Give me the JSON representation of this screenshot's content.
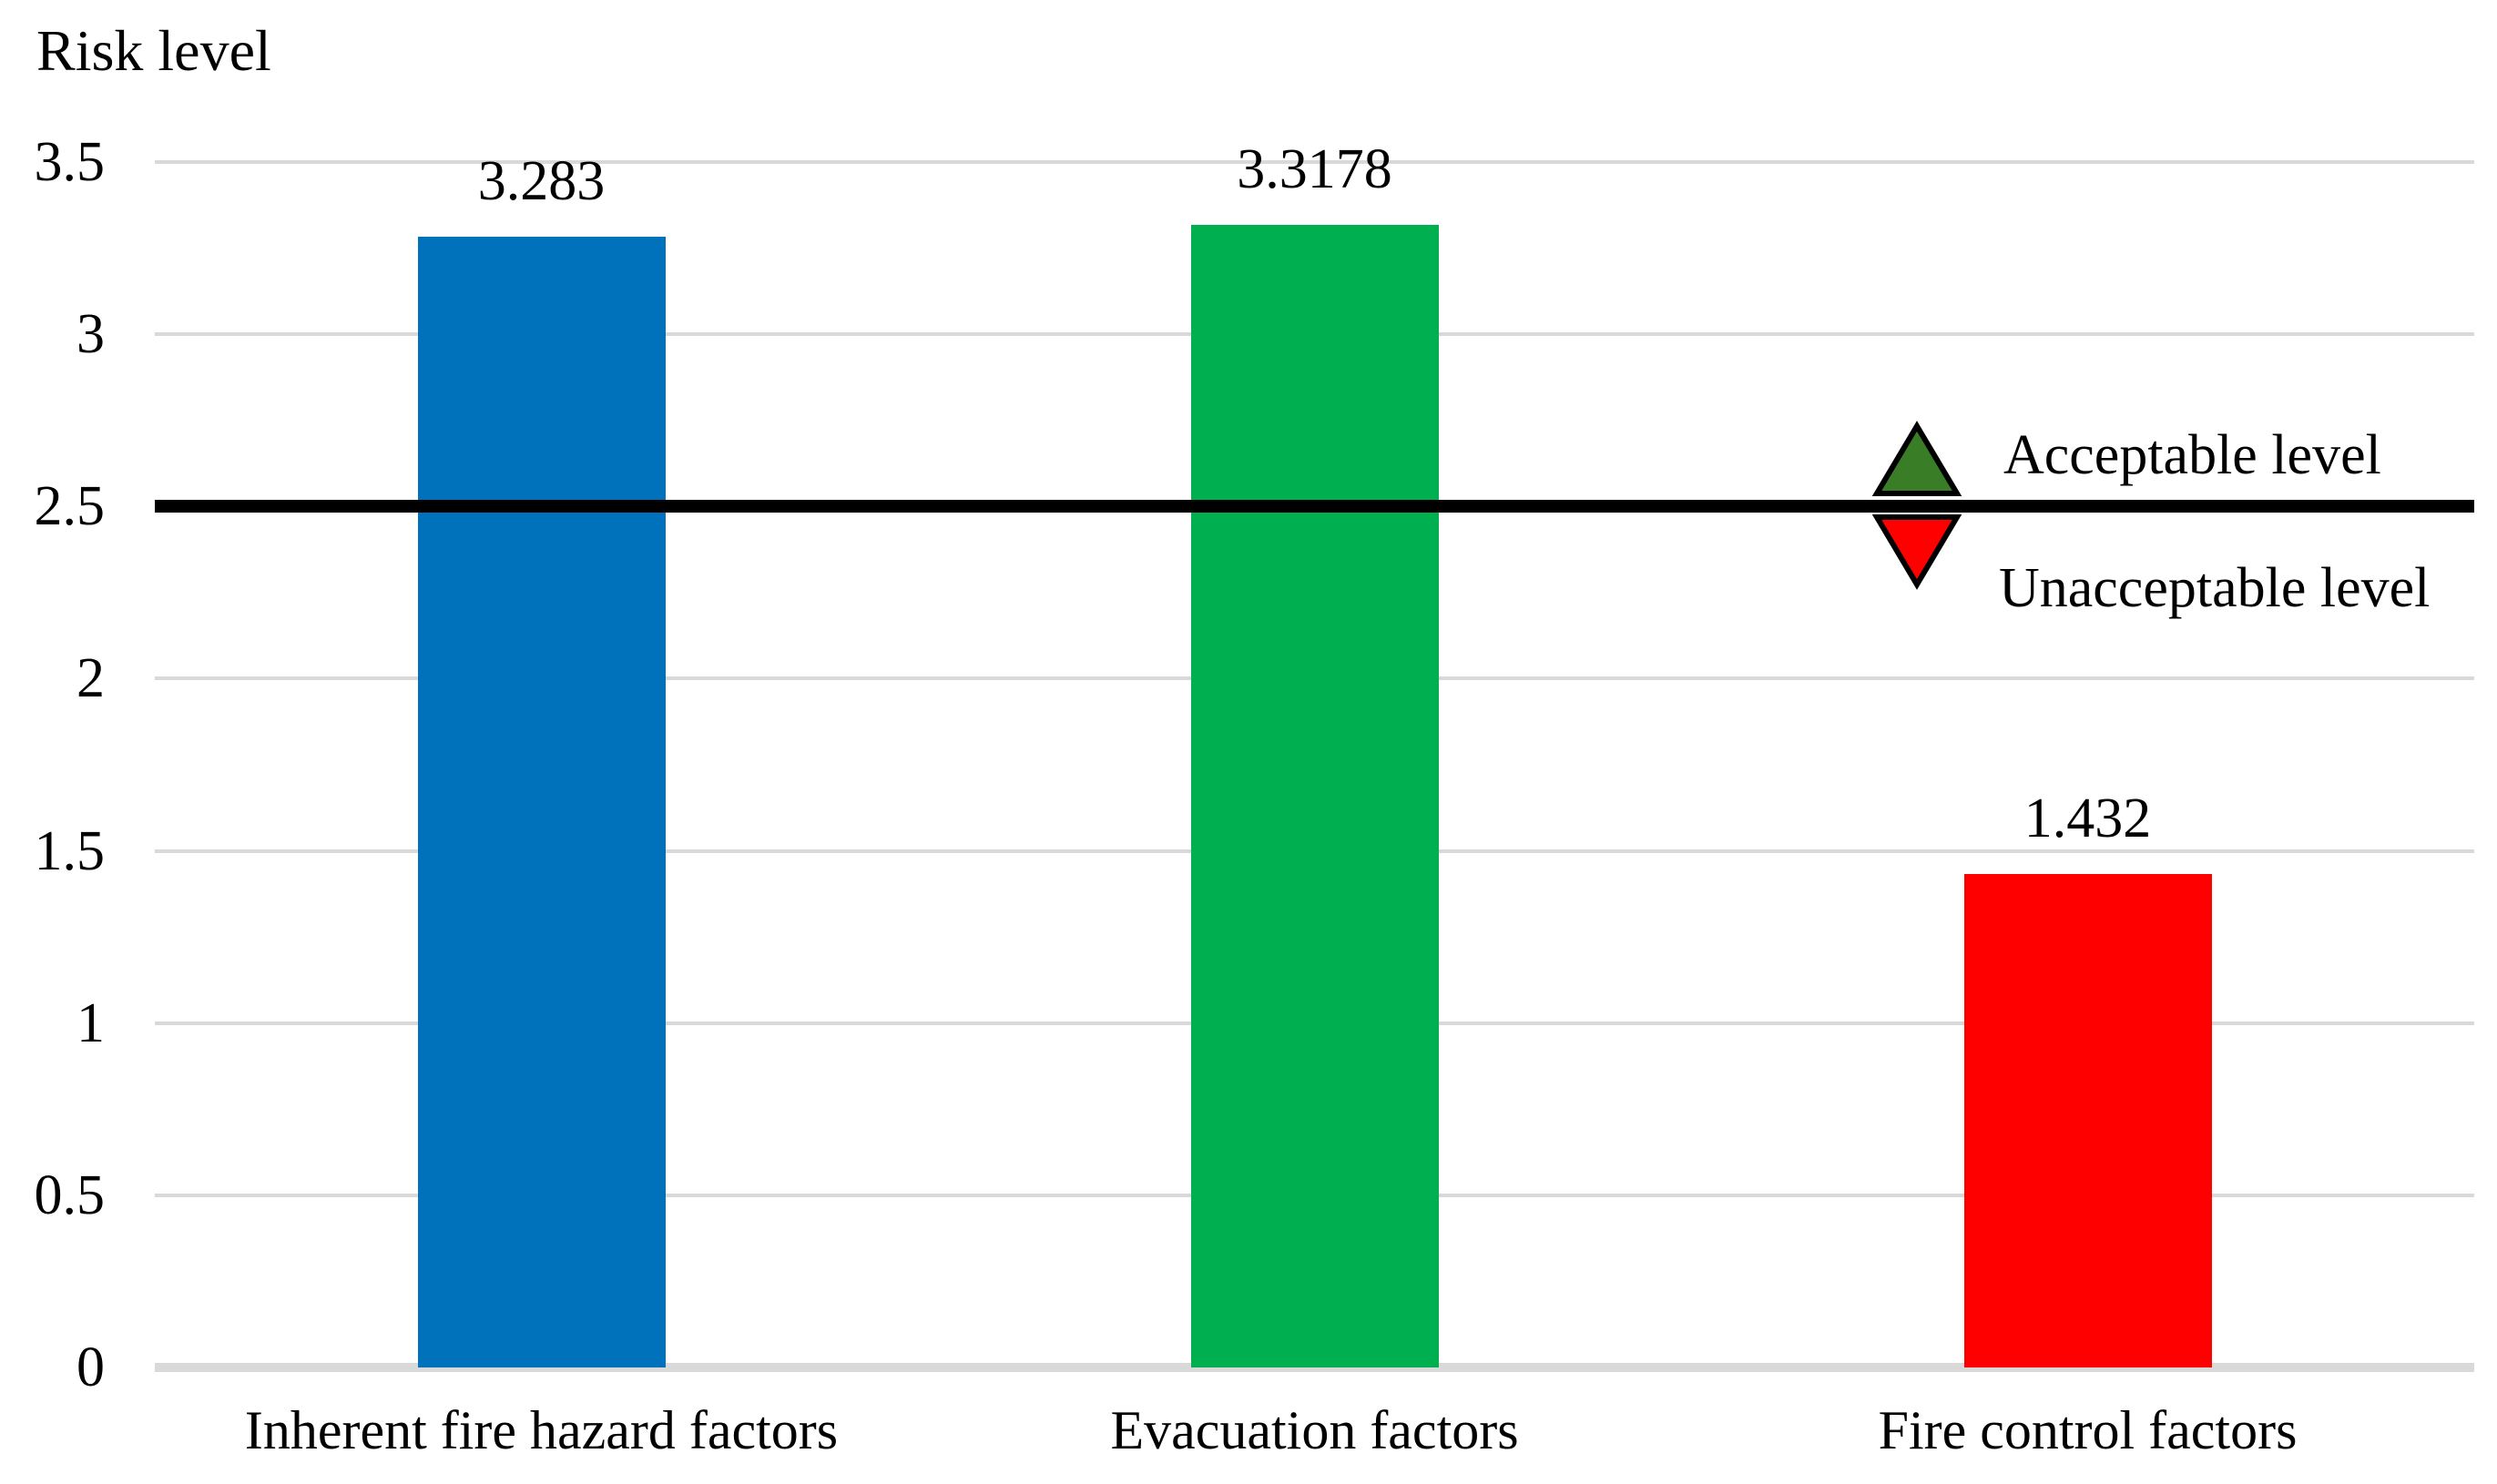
{
  "chart_data": {
    "type": "bar",
    "title": "Risk level",
    "categories": [
      "Inherent fire hazard factors",
      "Evacuation factors",
      "Fire control factors"
    ],
    "values": [
      3.283,
      3.3178,
      1.432
    ],
    "value_labels": [
      "3.283",
      "3.3178",
      "1.432"
    ],
    "bar_colors": [
      "#0072BC",
      "#00B050",
      "#FF0000"
    ],
    "xlabel": "",
    "ylabel": "Risk level",
    "ylim": [
      0,
      3.5
    ],
    "yticks": [
      0,
      0.5,
      1,
      1.5,
      2,
      2.5,
      3,
      3.5
    ],
    "ytick_labels": [
      "0",
      "0.5",
      "1",
      "1.5",
      "2",
      "2.5",
      "3",
      "3.5"
    ],
    "grid": true,
    "gridline_color": "#D9D9D9",
    "axis_line_color": "#D9D9D9",
    "text_color": "#000000",
    "legend_position": "right-of-reference-line",
    "reference_line": {
      "value": 2.5,
      "color": "#000000",
      "label_above": "Acceptable level",
      "label_below": "Unacceptable level",
      "marker_above": "triangle-up-icon",
      "marker_below": "triangle-down-icon",
      "marker_above_color": "#3A7D27",
      "marker_below_color": "#FF0000",
      "marker_outline_color": "#000000"
    }
  }
}
